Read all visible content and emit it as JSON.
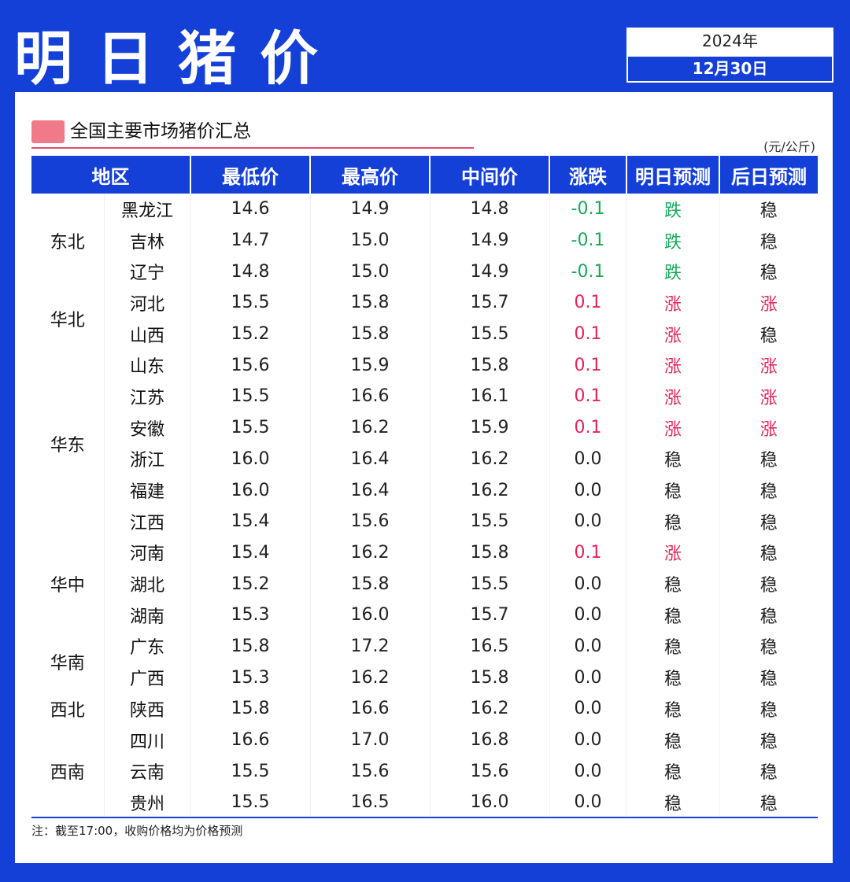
{
  "header": {
    "title": "明日猪价",
    "year": "2024年",
    "date": "12月30日"
  },
  "section": {
    "title": "全国主要市场猪价汇总",
    "unit": "(元/公斤)"
  },
  "table": {
    "columns": [
      "地区",
      "最低价",
      "最高价",
      "中间价",
      "涨跌",
      "明日预测",
      "后日预测"
    ],
    "groups": [
      {
        "region": "东北",
        "rows": [
          {
            "prov": "黑龙江",
            "min": "14.6",
            "max": "14.9",
            "mid": "14.8",
            "chg": "-0.1",
            "tomorrow": "跌",
            "after": "稳"
          },
          {
            "prov": "吉林",
            "min": "14.7",
            "max": "15.0",
            "mid": "14.9",
            "chg": "-0.1",
            "tomorrow": "跌",
            "after": "稳"
          },
          {
            "prov": "辽宁",
            "min": "14.8",
            "max": "15.0",
            "mid": "14.9",
            "chg": "-0.1",
            "tomorrow": "跌",
            "after": "稳"
          }
        ]
      },
      {
        "region": "华北",
        "rows": [
          {
            "prov": "河北",
            "min": "15.5",
            "max": "15.8",
            "mid": "15.7",
            "chg": "0.1",
            "tomorrow": "涨",
            "after": "涨"
          },
          {
            "prov": "山西",
            "min": "15.2",
            "max": "15.8",
            "mid": "15.5",
            "chg": "0.1",
            "tomorrow": "涨",
            "after": "稳"
          }
        ]
      },
      {
        "region": "华东",
        "rows": [
          {
            "prov": "山东",
            "min": "15.6",
            "max": "15.9",
            "mid": "15.8",
            "chg": "0.1",
            "tomorrow": "涨",
            "after": "涨"
          },
          {
            "prov": "江苏",
            "min": "15.5",
            "max": "16.6",
            "mid": "16.1",
            "chg": "0.1",
            "tomorrow": "涨",
            "after": "涨"
          },
          {
            "prov": "安徽",
            "min": "15.5",
            "max": "16.2",
            "mid": "15.9",
            "chg": "0.1",
            "tomorrow": "涨",
            "after": "涨"
          },
          {
            "prov": "浙江",
            "min": "16.0",
            "max": "16.4",
            "mid": "16.2",
            "chg": "0.0",
            "tomorrow": "稳",
            "after": "稳"
          },
          {
            "prov": "福建",
            "min": "16.0",
            "max": "16.4",
            "mid": "16.2",
            "chg": "0.0",
            "tomorrow": "稳",
            "after": "稳"
          },
          {
            "prov": "江西",
            "min": "15.4",
            "max": "15.6",
            "mid": "15.5",
            "chg": "0.0",
            "tomorrow": "稳",
            "after": "稳"
          }
        ]
      },
      {
        "region": "华中",
        "rows": [
          {
            "prov": "河南",
            "min": "15.4",
            "max": "16.2",
            "mid": "15.8",
            "chg": "0.1",
            "tomorrow": "涨",
            "after": "稳"
          },
          {
            "prov": "湖北",
            "min": "15.2",
            "max": "15.8",
            "mid": "15.5",
            "chg": "0.0",
            "tomorrow": "稳",
            "after": "稳"
          },
          {
            "prov": "湖南",
            "min": "15.3",
            "max": "16.0",
            "mid": "15.7",
            "chg": "0.0",
            "tomorrow": "稳",
            "after": "稳"
          }
        ]
      },
      {
        "region": "华南",
        "rows": [
          {
            "prov": "广东",
            "min": "15.8",
            "max": "17.2",
            "mid": "16.5",
            "chg": "0.0",
            "tomorrow": "稳",
            "after": "稳"
          },
          {
            "prov": "广西",
            "min": "15.3",
            "max": "16.2",
            "mid": "15.8",
            "chg": "0.0",
            "tomorrow": "稳",
            "after": "稳"
          }
        ]
      },
      {
        "region": "西北",
        "rows": [
          {
            "prov": "陕西",
            "min": "15.8",
            "max": "16.6",
            "mid": "16.2",
            "chg": "0.0",
            "tomorrow": "稳",
            "after": "稳"
          }
        ]
      },
      {
        "region": "西南",
        "rows": [
          {
            "prov": "四川",
            "min": "16.6",
            "max": "17.0",
            "mid": "16.8",
            "chg": "0.0",
            "tomorrow": "稳",
            "after": "稳"
          },
          {
            "prov": "云南",
            "min": "15.5",
            "max": "15.6",
            "mid": "15.6",
            "chg": "0.0",
            "tomorrow": "稳",
            "after": "稳"
          },
          {
            "prov": "贵州",
            "min": "15.5",
            "max": "16.5",
            "mid": "16.0",
            "chg": "0.0",
            "tomorrow": "稳",
            "after": "稳"
          }
        ]
      }
    ]
  },
  "note": "注：截至17:00，收购价格均为价格预测",
  "colors": {
    "brand_blue": "#1440d8",
    "up_red": "#e2245a",
    "down_green": "#19a85a",
    "marker_pink": "#f07a8a"
  }
}
